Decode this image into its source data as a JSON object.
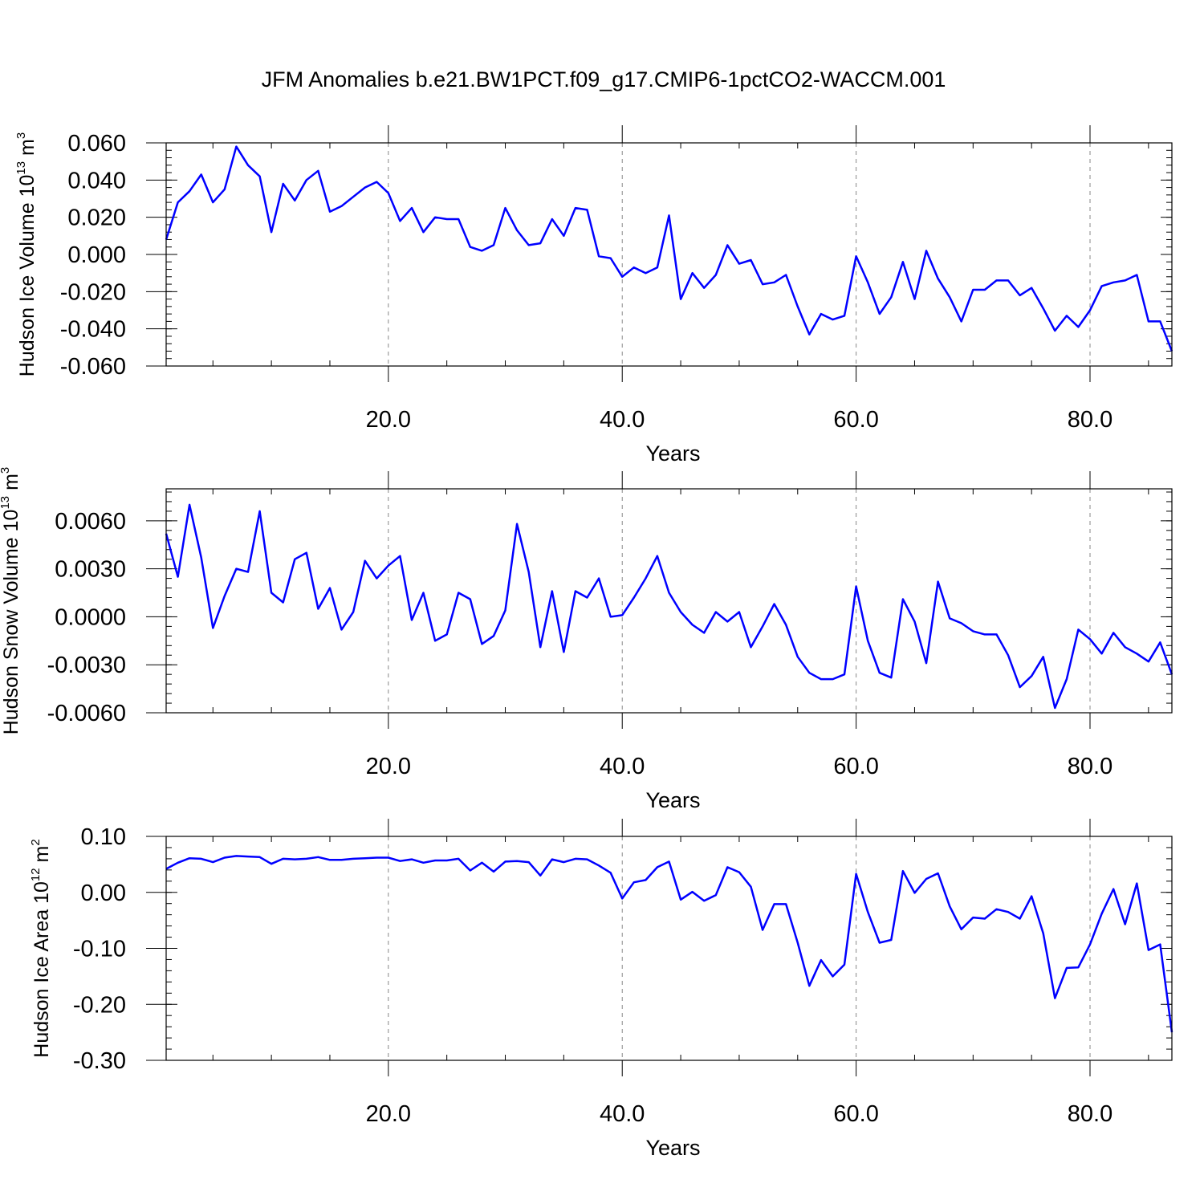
{
  "title": "JFM Anomalies b.e21.BW1PCT.f09_g17.CMIP6-1pctCO2-WACCM.001",
  "line_color": "#0000ff",
  "chart_data": [
    {
      "type": "line",
      "name": "ice-volume",
      "ylabel_text": "Hudson Ice Volume 10",
      "ylabel_exp": "13",
      "ylabel_unit": " m",
      "ylabel_unit_exp": "3",
      "xlabel": "Years",
      "xlim": [
        1,
        87
      ],
      "xticks": [
        20,
        40,
        60,
        80
      ],
      "xtick_labels": [
        "20.0",
        "40.0",
        "60.0",
        "80.0"
      ],
      "ylim": [
        -0.06,
        0.06
      ],
      "yticks": [
        -0.06,
        -0.04,
        -0.02,
        0,
        0.02,
        0.04,
        0.06
      ],
      "ytick_labels": [
        "-0.060",
        "-0.040",
        "-0.020",
        "0.000",
        "0.020",
        "0.040",
        "0.060"
      ],
      "vgrid": [
        20,
        40,
        60,
        80
      ],
      "x": [
        1,
        2,
        3,
        4,
        5,
        6,
        7,
        8,
        9,
        10,
        11,
        12,
        13,
        14,
        15,
        16,
        17,
        18,
        19,
        20,
        21,
        22,
        23,
        24,
        25,
        26,
        27,
        28,
        29,
        30,
        31,
        32,
        33,
        34,
        35,
        36,
        37,
        38,
        39,
        40,
        41,
        42,
        43,
        44,
        45,
        46,
        47,
        48,
        49,
        50,
        51,
        52,
        53,
        54,
        55,
        56,
        57,
        58,
        59,
        60,
        61,
        62,
        63,
        64,
        65,
        66,
        67,
        68,
        69,
        70,
        71,
        72,
        73,
        74,
        75,
        76,
        77,
        78,
        79,
        80,
        81,
        82,
        83,
        84,
        85,
        86,
        87
      ],
      "values": [
        0.008,
        0.028,
        0.034,
        0.043,
        0.028,
        0.035,
        0.058,
        0.048,
        0.042,
        0.012,
        0.038,
        0.029,
        0.04,
        0.045,
        0.023,
        0.026,
        0.031,
        0.036,
        0.039,
        0.033,
        0.018,
        0.025,
        0.012,
        0.02,
        0.019,
        0.019,
        0.004,
        0.002,
        0.005,
        0.025,
        0.013,
        0.005,
        0.006,
        0.019,
        0.01,
        0.025,
        0.024,
        -0.001,
        -0.002,
        -0.012,
        -0.007,
        -0.01,
        -0.007,
        0.021,
        -0.024,
        -0.01,
        -0.018,
        -0.011,
        0.005,
        -0.005,
        -0.003,
        -0.016,
        -0.015,
        -0.011,
        -0.028,
        -0.043,
        -0.032,
        -0.035,
        -0.033,
        -0.001,
        -0.015,
        -0.032,
        -0.023,
        -0.004,
        -0.024,
        0.002,
        -0.013,
        -0.023,
        -0.036,
        -0.019,
        -0.019,
        -0.014,
        -0.014,
        -0.022,
        -0.018,
        -0.029,
        -0.041,
        -0.033,
        -0.039,
        -0.03,
        -0.017,
        -0.015,
        -0.014,
        -0.011,
        -0.036,
        -0.036,
        -0.052
      ]
    },
    {
      "type": "line",
      "name": "snow-volume",
      "ylabel_text": "Hudson Snow Volume 10",
      "ylabel_exp": "13",
      "ylabel_unit": " m",
      "ylabel_unit_exp": "3",
      "xlabel": "Years",
      "xlim": [
        1,
        87
      ],
      "xticks": [
        20,
        40,
        60,
        80
      ],
      "xtick_labels": [
        "20.0",
        "40.0",
        "60.0",
        "80.0"
      ],
      "ylim": [
        -0.006,
        0.008
      ],
      "yticks": [
        -0.006,
        -0.003,
        0,
        0.003,
        0.006
      ],
      "ytick_labels": [
        "-0.0060",
        "-0.0030",
        "0.0000",
        "0.0030",
        "0.0060"
      ],
      "vgrid": [
        20,
        40,
        60,
        80
      ],
      "x": [
        1,
        2,
        3,
        4,
        5,
        6,
        7,
        8,
        9,
        10,
        11,
        12,
        13,
        14,
        15,
        16,
        17,
        18,
        19,
        20,
        21,
        22,
        23,
        24,
        25,
        26,
        27,
        28,
        29,
        30,
        31,
        32,
        33,
        34,
        35,
        36,
        37,
        38,
        39,
        40,
        41,
        42,
        43,
        44,
        45,
        46,
        47,
        48,
        49,
        50,
        51,
        52,
        53,
        54,
        55,
        56,
        57,
        58,
        59,
        60,
        61,
        62,
        63,
        64,
        65,
        66,
        67,
        68,
        69,
        70,
        71,
        72,
        73,
        74,
        75,
        76,
        77,
        78,
        79,
        80,
        81,
        82,
        83,
        84,
        85,
        86,
        87
      ],
      "values": [
        0.0052,
        0.0025,
        0.007,
        0.0037,
        -0.0007,
        0.0013,
        0.003,
        0.0028,
        0.0066,
        0.0015,
        0.0009,
        0.0036,
        0.004,
        0.0005,
        0.0018,
        -0.0008,
        0.0003,
        0.0035,
        0.0024,
        0.0032,
        0.0038,
        -0.0002,
        0.0015,
        -0.0015,
        -0.0011,
        0.0015,
        0.0011,
        -0.0017,
        -0.0012,
        0.0004,
        0.0058,
        0.0028,
        -0.0019,
        0.0016,
        -0.0022,
        0.0016,
        0.0012,
        0.0024,
        0.0,
        0.0001,
        0.0012,
        0.0024,
        0.0038,
        0.0015,
        0.0003,
        -0.0005,
        -0.001,
        0.0003,
        -0.0003,
        0.0003,
        -0.0019,
        -0.0006,
        0.0008,
        -0.0005,
        -0.0025,
        -0.0035,
        -0.0039,
        -0.0039,
        -0.0036,
        0.0019,
        -0.0015,
        -0.0035,
        -0.0038,
        0.0011,
        -0.0003,
        -0.0029,
        0.0022,
        -0.0001,
        -0.0004,
        -0.0009,
        -0.0011,
        -0.0011,
        -0.0024,
        -0.0044,
        -0.0037,
        -0.0025,
        -0.0057,
        -0.0039,
        -0.0008,
        -0.0014,
        -0.0023,
        -0.001,
        -0.0019,
        -0.0023,
        -0.0028,
        -0.0016,
        -0.0036
      ]
    },
    {
      "type": "line",
      "name": "ice-area",
      "ylabel_text": "Hudson Ice Area 10",
      "ylabel_exp": "12",
      "ylabel_unit": " m",
      "ylabel_unit_exp": "2",
      "xlabel": "Years",
      "xlim": [
        1,
        87
      ],
      "xticks": [
        20,
        40,
        60,
        80
      ],
      "xtick_labels": [
        "20.0",
        "40.0",
        "60.0",
        "80.0"
      ],
      "ylim": [
        -0.3,
        0.1
      ],
      "yticks": [
        -0.3,
        -0.2,
        -0.1,
        0,
        0.1
      ],
      "ytick_labels": [
        "-0.30",
        "-0.20",
        "-0.10",
        "0.00",
        "0.10"
      ],
      "vgrid": [
        20,
        40,
        60,
        80
      ],
      "x": [
        1,
        2,
        3,
        4,
        5,
        6,
        7,
        8,
        9,
        10,
        11,
        12,
        13,
        14,
        15,
        16,
        17,
        18,
        19,
        20,
        21,
        22,
        23,
        24,
        25,
        26,
        27,
        28,
        29,
        30,
        31,
        32,
        33,
        34,
        35,
        36,
        37,
        38,
        39,
        40,
        41,
        42,
        43,
        44,
        45,
        46,
        47,
        48,
        49,
        50,
        51,
        52,
        53,
        54,
        55,
        56,
        57,
        58,
        59,
        60,
        61,
        62,
        63,
        64,
        65,
        66,
        67,
        68,
        69,
        70,
        71,
        72,
        73,
        74,
        75,
        76,
        77,
        78,
        79,
        80,
        81,
        82,
        83,
        84,
        85,
        86,
        87
      ],
      "values": [
        0.042,
        0.053,
        0.061,
        0.06,
        0.054,
        0.062,
        0.065,
        0.064,
        0.063,
        0.051,
        0.06,
        0.059,
        0.06,
        0.063,
        0.058,
        0.058,
        0.06,
        0.061,
        0.062,
        0.062,
        0.056,
        0.059,
        0.053,
        0.057,
        0.057,
        0.06,
        0.039,
        0.053,
        0.037,
        0.055,
        0.056,
        0.054,
        0.03,
        0.059,
        0.054,
        0.06,
        0.059,
        0.048,
        0.035,
        -0.011,
        0.018,
        0.022,
        0.045,
        0.055,
        -0.013,
        0.001,
        -0.015,
        -0.005,
        0.045,
        0.036,
        0.01,
        -0.067,
        -0.021,
        -0.021,
        -0.09,
        -0.167,
        -0.121,
        -0.15,
        -0.129,
        0.033,
        -0.035,
        -0.09,
        -0.085,
        0.038,
        -0.001,
        0.024,
        0.034,
        -0.025,
        -0.066,
        -0.045,
        -0.047,
        -0.03,
        -0.035,
        -0.047,
        -0.007,
        -0.073,
        -0.189,
        -0.135,
        -0.134,
        -0.093,
        -0.038,
        0.006,
        -0.057,
        0.016,
        -0.103,
        -0.093,
        -0.25
      ]
    }
  ]
}
